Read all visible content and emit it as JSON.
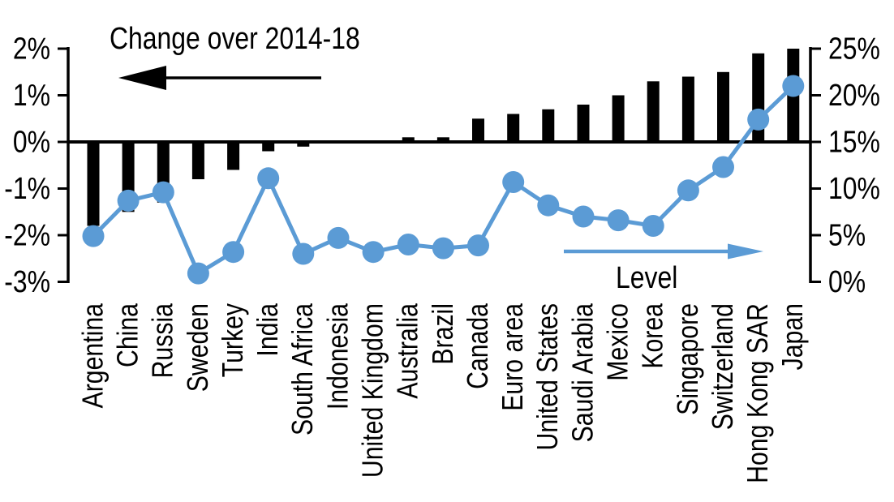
{
  "chart_data": {
    "type": "bar",
    "subtype": "dual-axis bar + line",
    "categories": [
      "Argentina",
      "China",
      "Russia",
      "Sweden",
      "Turkey",
      "India",
      "South Africa",
      "Indonesia",
      "United Kingdom",
      "Australia",
      "Brazil",
      "Canada",
      "Euro area",
      "United States",
      "Saudi Arabia",
      "Mexico",
      "Korea",
      "Singapore",
      "Switzerland",
      "Hong Kong SAR",
      "Japan"
    ],
    "series": [
      {
        "name": "Change over 2014-18",
        "type": "bar",
        "axis": "left",
        "unit": "%",
        "values": [
          -1.8,
          -1.5,
          -1.3,
          -0.8,
          -0.6,
          -0.2,
          -0.1,
          0,
          0,
          0.1,
          0.1,
          0.5,
          0.6,
          0.7,
          0.8,
          1.0,
          1.3,
          1.4,
          1.5,
          1.9,
          2.0
        ]
      },
      {
        "name": "Level",
        "type": "line",
        "axis": "right",
        "unit": "%",
        "values": [
          4.9,
          8.7,
          9.6,
          0.9,
          3.2,
          11.1,
          3.0,
          4.7,
          3.2,
          4.0,
          3.6,
          3.9,
          10.7,
          8.2,
          7.0,
          6.6,
          6.0,
          9.8,
          12.3,
          17.4,
          21.0
        ]
      }
    ],
    "left_axis": {
      "min": -3,
      "max": 2,
      "tick_values": [
        2,
        1,
        0,
        -1,
        -2,
        -3
      ],
      "tick_labels": [
        "2%",
        "1%",
        "0%",
        "-1%",
        "-2%",
        "-3%"
      ]
    },
    "right_axis": {
      "min": 0,
      "max": 25,
      "tick_values": [
        25,
        20,
        15,
        10,
        5,
        0
      ],
      "tick_labels": [
        "25%",
        "20%",
        "15%",
        "10%",
        "5%",
        "0%"
      ]
    },
    "annotations": {
      "left_series_label": "Change over 2014-18",
      "right_series_label": "Level",
      "left_arrow": "points-left",
      "right_arrow": "points-right"
    },
    "colors": {
      "bar": "#000000",
      "line": "#5b9bd5",
      "axis": "#000000",
      "background": "#ffffff"
    },
    "grid": "off",
    "legend_position": "in-plot annotations with arrows"
  }
}
